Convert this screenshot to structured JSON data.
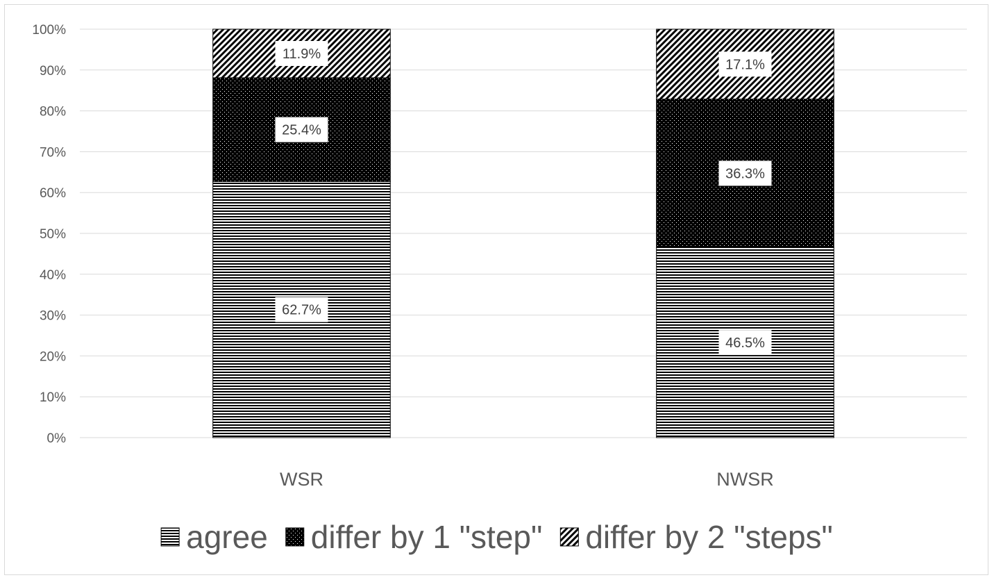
{
  "chart_data": {
    "type": "bar",
    "stacked": true,
    "percent_stacked": true,
    "categories": [
      "WSR",
      "NWSR"
    ],
    "series": [
      {
        "name": "agree",
        "values": [
          62.7,
          46.5
        ],
        "data_labels": [
          "62.7%",
          "46.5%"
        ],
        "pattern": "horizontal-lines"
      },
      {
        "name": "differ by 1 \"step\"",
        "values": [
          25.4,
          36.3
        ],
        "data_labels": [
          "25.4%",
          "36.3%"
        ],
        "pattern": "dots-on-black"
      },
      {
        "name": "differ by 2 \"steps\"",
        "values": [
          11.9,
          17.1
        ],
        "data_labels": [
          "11.9%",
          "17.1%"
        ],
        "pattern": "diagonal-lines"
      }
    ],
    "y_ticks": [
      "0%",
      "10%",
      "20%",
      "30%",
      "40%",
      "50%",
      "60%",
      "70%",
      "80%",
      "90%",
      "100%"
    ],
    "ylim": [
      0,
      100
    ],
    "grid": true,
    "legend_position": "bottom",
    "title": "",
    "xlabel": "",
    "ylabel": ""
  }
}
